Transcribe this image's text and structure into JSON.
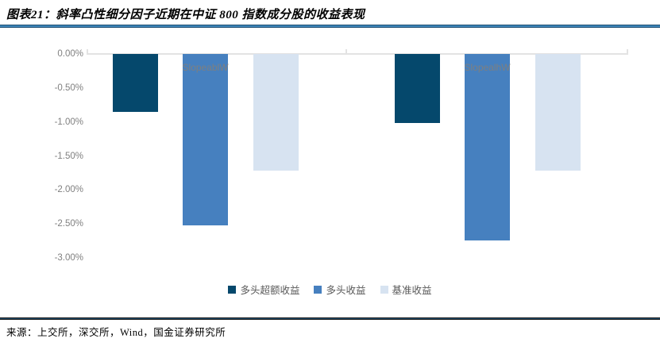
{
  "header": {
    "title": "图表21：斜率凸性细分因子近期在中证 800 指数成分股的收益表现"
  },
  "footer": {
    "source": "来源：上交所，深交所，Wind，国金证券研究所"
  },
  "colors": {
    "title_rule_blue": "#3d85b8",
    "footer_rule_navy": "#1f4e6e",
    "axis_line_gray": "#e3e3e3",
    "y_tick_text_gray": "#808080",
    "category_label_gray": "#7f7f7f",
    "legend_text_gray": "#595959"
  },
  "chart_data": {
    "type": "bar",
    "categories": [
      "SlopeablW",
      "SlopealhW"
    ],
    "series": [
      {
        "name": "多头超额收益",
        "color": "#05486C",
        "values": [
          -0.85,
          -1.02
        ]
      },
      {
        "name": "多头收益",
        "color": "#4680BF",
        "values": [
          -2.52,
          -2.74
        ]
      },
      {
        "name": "基准收益",
        "color": "#D7E3F1",
        "values": [
          -1.72,
          -1.71
        ]
      }
    ],
    "y_ticks": [
      "0.00%",
      "-0.50%",
      "-1.00%",
      "-1.50%",
      "-2.00%",
      "-2.50%",
      "-3.00%"
    ],
    "ylim": [
      -3.0,
      0.0
    ],
    "grid": false,
    "legend_position": "bottom",
    "xlabel": "",
    "ylabel": ""
  }
}
